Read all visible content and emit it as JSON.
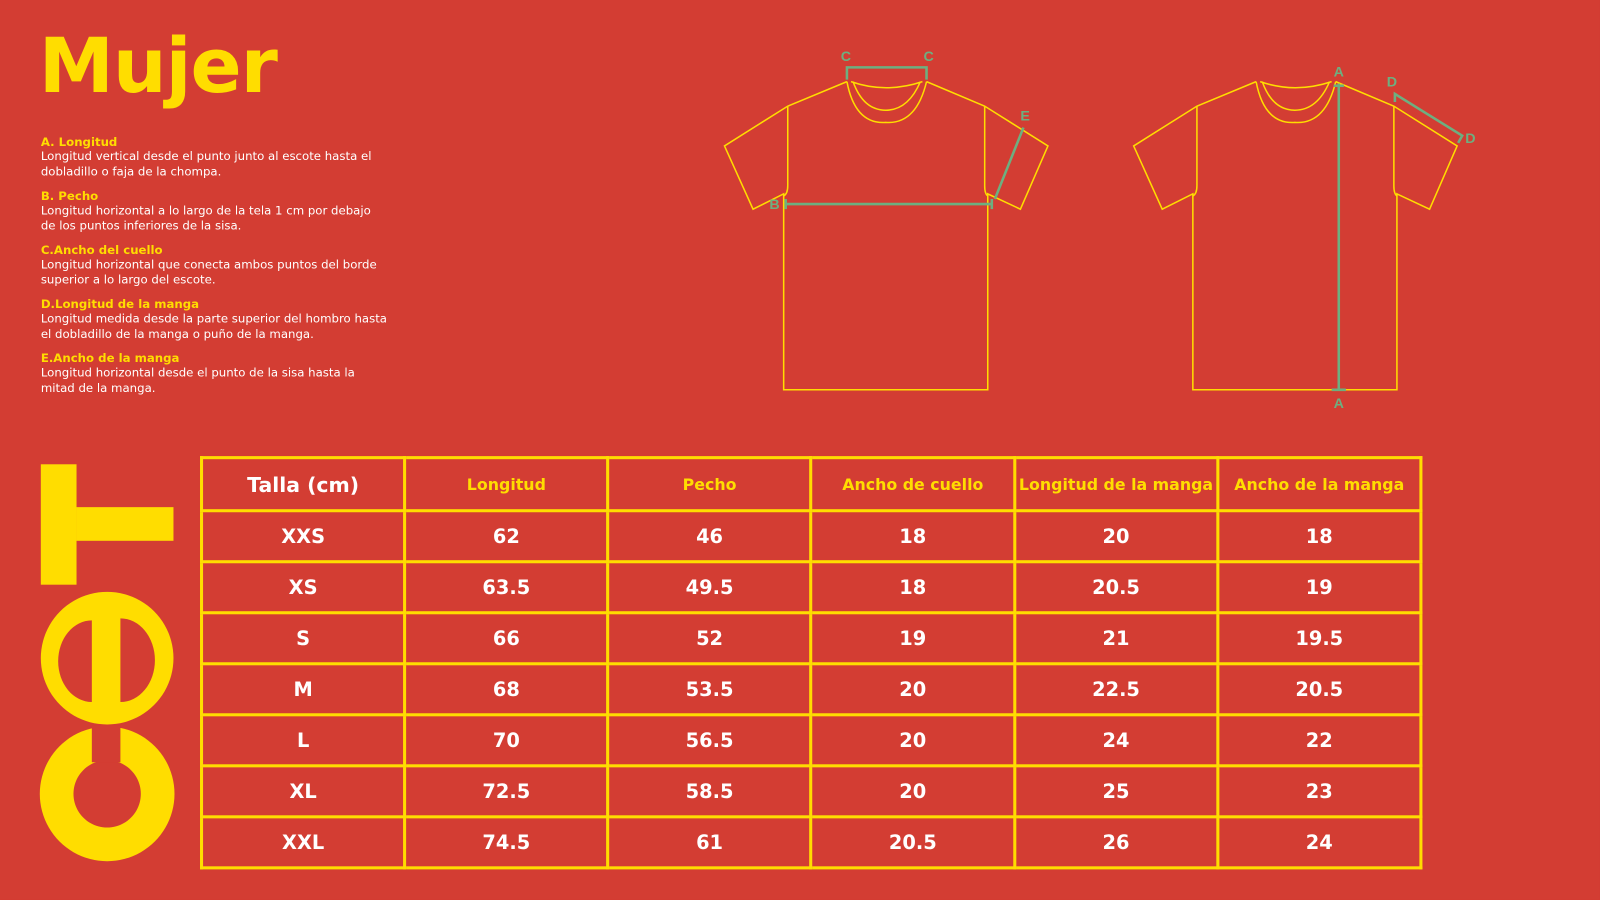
{
  "title": "Mujer",
  "brand": {
    "logo_text": "cet",
    "colors": {
      "background": "#D33D33",
      "accent": "#FFDD00",
      "measure": "#6DAF80"
    }
  },
  "definitions": [
    {
      "heading": "A. Longitud",
      "text": "Longitud vertical desde el punto junto al escote hasta el dobladillo o faja de la chompa."
    },
    {
      "heading": "B. Pecho",
      "text": "Longitud horizontal a lo largo de la tela 1 cm por debajo de los puntos inferiores de la sisa."
    },
    {
      "heading": "C.Ancho del cuello",
      "text": "Longitud horizontal que conecta ambos puntos del borde superior a lo largo del escote."
    },
    {
      "heading": "D.Longitud de la manga",
      "text": "Longitud medida desde la parte superior del hombro hasta el dobladillo de la manga o puño de la manga."
    },
    {
      "heading": "E.Ancho de la manga",
      "text": "Longitud horizontal desde el punto de la sisa hasta la mitad de la manga."
    }
  ],
  "diagram_labels": {
    "a": "A",
    "b": "B",
    "c": "C",
    "d": "D",
    "e": "E"
  },
  "table": {
    "headers": [
      "Talla (cm)",
      "Longitud",
      "Pecho",
      "Ancho de cuello",
      "Longitud de la manga",
      "Ancho de la manga"
    ],
    "rows": [
      [
        "XXS",
        "62",
        "46",
        "18",
        "20",
        "18"
      ],
      [
        "XS",
        "63.5",
        "49.5",
        "18",
        "20.5",
        "19"
      ],
      [
        "S",
        "66",
        "52",
        "19",
        "21",
        "19.5"
      ],
      [
        "M",
        "68",
        "53.5",
        "20",
        "22.5",
        "20.5"
      ],
      [
        "L",
        "70",
        "56.5",
        "20",
        "24",
        "22"
      ],
      [
        "XL",
        "72.5",
        "58.5",
        "20",
        "25",
        "23"
      ],
      [
        "XXL",
        "74.5",
        "61",
        "20.5",
        "26",
        "24"
      ]
    ]
  }
}
